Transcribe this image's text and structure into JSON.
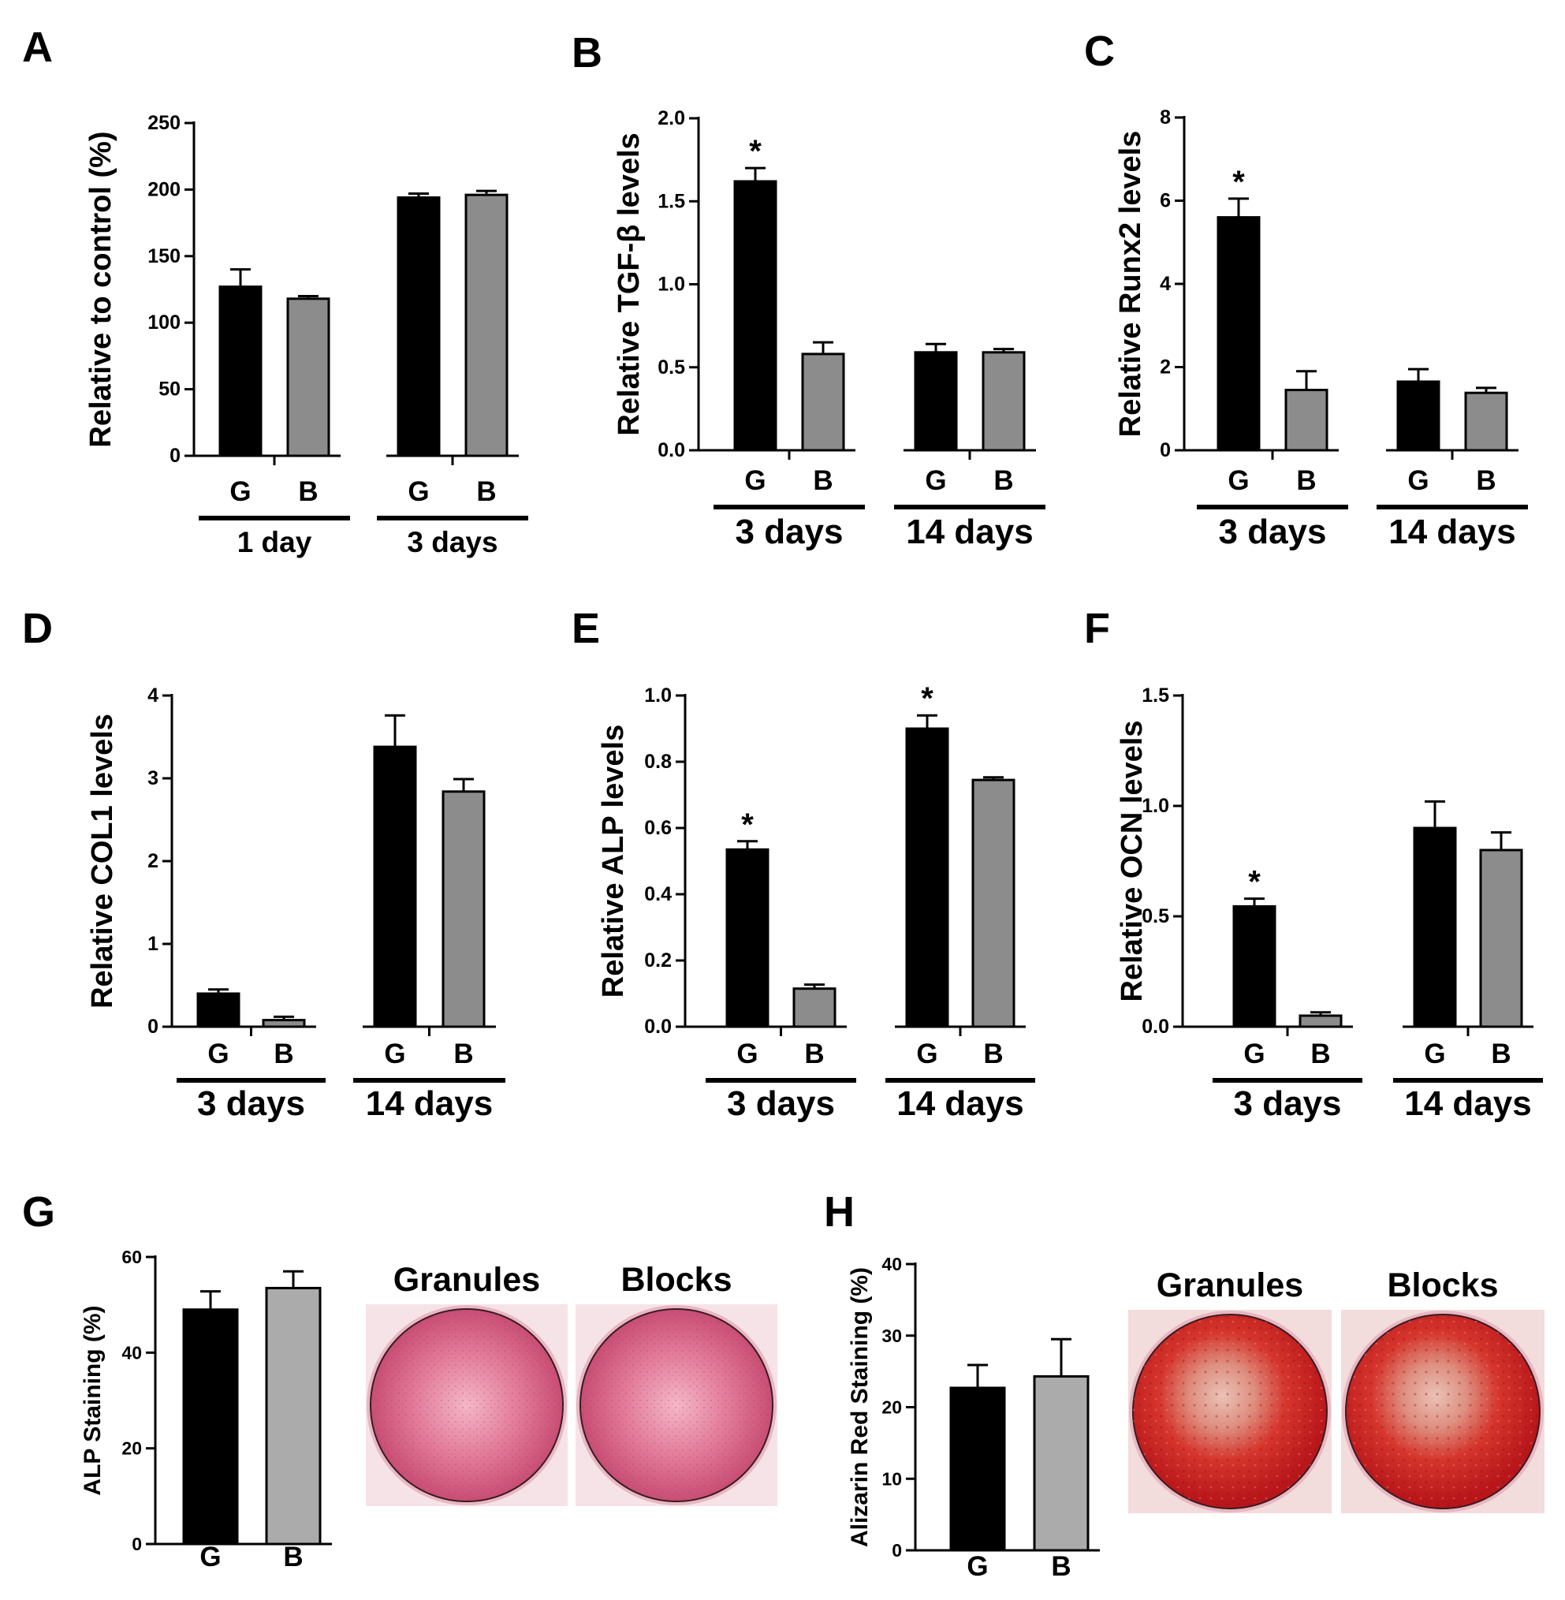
{
  "figure": {
    "description_type": "multi-panel bar chart figure"
  },
  "chart_data": [
    {
      "panel": "A",
      "type": "bar",
      "ylabel": "Relative to control (%)",
      "yticks": [
        "0",
        "50",
        "100",
        "150",
        "200",
        "250"
      ],
      "ylim": [
        0,
        250
      ],
      "groups": [
        {
          "label": "1 day",
          "bars": [
            {
              "label": "G",
              "value": 127,
              "err": 13,
              "color": "#000000"
            },
            {
              "label": "B",
              "value": 118,
              "err": 2,
              "color": "#8c8c8c"
            }
          ]
        },
        {
          "label": "3 days",
          "bars": [
            {
              "label": "G",
              "value": 194,
              "err": 3,
              "color": "#000000"
            },
            {
              "label": "B",
              "value": 196,
              "err": 3,
              "color": "#8c8c8c"
            }
          ]
        }
      ]
    },
    {
      "panel": "B",
      "type": "bar",
      "ylabel": "Relative TGF-β levels",
      "yticks": [
        "0.0",
        "0.5",
        "1.0",
        "1.5",
        "2.0"
      ],
      "ylim": [
        0,
        2.0
      ],
      "groups": [
        {
          "label": "3 days",
          "bars": [
            {
              "label": "G",
              "value": 1.62,
              "err": 0.08,
              "color": "#000000",
              "mark": "*"
            },
            {
              "label": "B",
              "value": 0.58,
              "err": 0.07,
              "color": "#8c8c8c"
            }
          ]
        },
        {
          "label": "14 days",
          "bars": [
            {
              "label": "G",
              "value": 0.59,
              "err": 0.05,
              "color": "#000000"
            },
            {
              "label": "B",
              "value": 0.59,
              "err": 0.02,
              "color": "#8c8c8c"
            }
          ]
        }
      ]
    },
    {
      "panel": "C",
      "type": "bar",
      "ylabel": "Relative Runx2 levels",
      "yticks": [
        "0",
        "2",
        "4",
        "6",
        "8"
      ],
      "ylim": [
        0,
        8
      ],
      "groups": [
        {
          "label": "3 days",
          "bars": [
            {
              "label": "G",
              "value": 5.6,
              "err": 0.45,
              "color": "#000000",
              "mark": "*"
            },
            {
              "label": "B",
              "value": 1.45,
              "err": 0.45,
              "color": "#8c8c8c"
            }
          ]
        },
        {
          "label": "14 days",
          "bars": [
            {
              "label": "G",
              "value": 1.65,
              "err": 0.3,
              "color": "#000000"
            },
            {
              "label": "B",
              "value": 1.38,
              "err": 0.12,
              "color": "#8c8c8c"
            }
          ]
        }
      ]
    },
    {
      "panel": "D",
      "type": "bar",
      "ylabel": "Relative COL1 levels",
      "yticks": [
        "0",
        "1",
        "2",
        "3",
        "4"
      ],
      "ylim": [
        0,
        4
      ],
      "groups": [
        {
          "label": "3 days",
          "bars": [
            {
              "label": "G",
              "value": 0.4,
              "err": 0.05,
              "color": "#000000"
            },
            {
              "label": "B",
              "value": 0.08,
              "err": 0.04,
              "color": "#8c8c8c"
            }
          ]
        },
        {
          "label": "14 days",
          "bars": [
            {
              "label": "G",
              "value": 3.38,
              "err": 0.38,
              "color": "#000000"
            },
            {
              "label": "B",
              "value": 2.84,
              "err": 0.15,
              "color": "#8c8c8c"
            }
          ]
        }
      ]
    },
    {
      "panel": "E",
      "type": "bar",
      "ylabel": "Relative ALP levels",
      "yticks": [
        "0.0",
        "0.2",
        "0.4",
        "0.6",
        "0.8",
        "1.0"
      ],
      "ylim": [
        0,
        1.0
      ],
      "groups": [
        {
          "label": "3 days",
          "bars": [
            {
              "label": "G",
              "value": 0.535,
              "err": 0.025,
              "color": "#000000",
              "mark": "*"
            },
            {
              "label": "B",
              "value": 0.115,
              "err": 0.012,
              "color": "#8c8c8c"
            }
          ]
        },
        {
          "label": "14 days",
          "bars": [
            {
              "label": "G",
              "value": 0.9,
              "err": 0.04,
              "color": "#000000",
              "mark": "*"
            },
            {
              "label": "B",
              "value": 0.745,
              "err": 0.008,
              "color": "#8c8c8c"
            }
          ]
        }
      ]
    },
    {
      "panel": "F",
      "type": "bar",
      "ylabel": "Relative OCN levels",
      "yticks": [
        "0.0",
        "0.5",
        "1.0",
        "1.5"
      ],
      "ylim": [
        0,
        1.5
      ],
      "groups": [
        {
          "label": "3 days",
          "bars": [
            {
              "label": "G",
              "value": 0.545,
              "err": 0.035,
              "color": "#000000",
              "mark": "*"
            },
            {
              "label": "B",
              "value": 0.05,
              "err": 0.015,
              "color": "#8c8c8c"
            }
          ]
        },
        {
          "label": "14 days",
          "bars": [
            {
              "label": "G",
              "value": 0.9,
              "err": 0.12,
              "color": "#000000"
            },
            {
              "label": "B",
              "value": 0.8,
              "err": 0.08,
              "color": "#8c8c8c"
            }
          ]
        }
      ]
    },
    {
      "panel": "G",
      "type": "bar",
      "ylabel": "ALP Staining (%)",
      "yticks": [
        "0",
        "20",
        "40",
        "60"
      ],
      "ylim": [
        0,
        60
      ],
      "groups": [
        {
          "label": "",
          "bars": [
            {
              "label": "G",
              "value": 49,
              "err": 3.8,
              "color": "#000000"
            },
            {
              "label": "B",
              "value": 53.5,
              "err": 3.5,
              "color": "#ababab"
            }
          ]
        }
      ],
      "images": [
        {
          "label": "Granules",
          "stain": "alp"
        },
        {
          "label": "Blocks",
          "stain": "alp"
        }
      ]
    },
    {
      "panel": "H",
      "type": "bar",
      "ylabel": "Alizarin Red Staining (%)",
      "yticks": [
        "0",
        "10",
        "20",
        "30",
        "40"
      ],
      "ylim": [
        0,
        40
      ],
      "groups": [
        {
          "label": "",
          "bars": [
            {
              "label": "G",
              "value": 22.7,
              "err": 3.2,
              "color": "#000000"
            },
            {
              "label": "B",
              "value": 24.3,
              "err": 5.2,
              "color": "#ababab"
            }
          ]
        }
      ],
      "images": [
        {
          "label": "Granules",
          "stain": "alizarin"
        },
        {
          "label": "Blocks",
          "stain": "alizarin"
        }
      ]
    }
  ]
}
